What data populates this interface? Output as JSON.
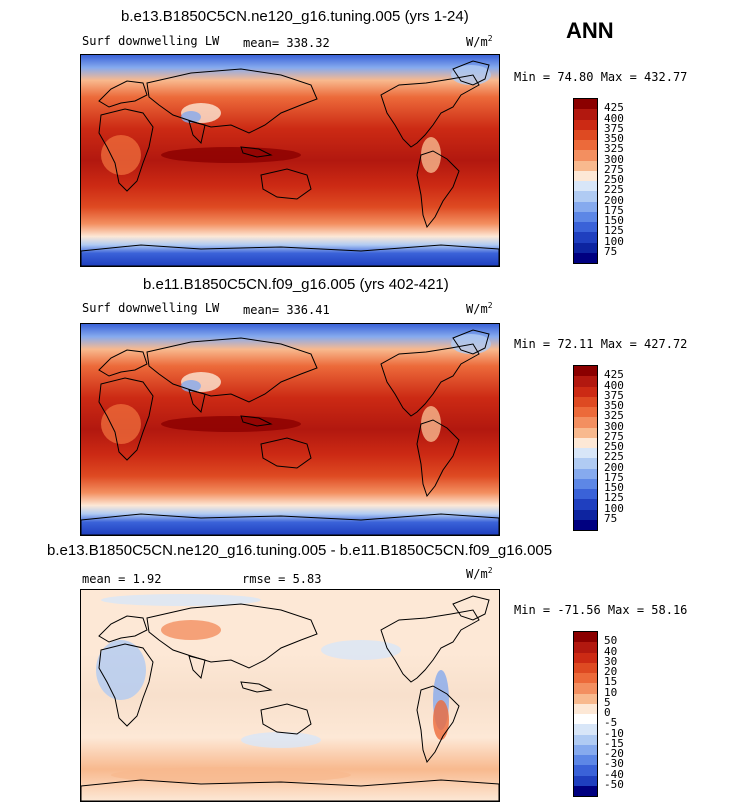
{
  "season": "ANN",
  "panels": [
    {
      "title": "b.e13.B1850C5CN.ne120_g16.tuning.005 (yrs 1-24)",
      "left_label": "Surf downwelling LW",
      "stat1": "mean= 338.32",
      "stat2": "",
      "units": "W/m",
      "units_sup": "2",
      "minmax": "Min =  74.80 Max = 432.77",
      "colorbar": {
        "ticks": [
          "425",
          "400",
          "375",
          "350",
          "325",
          "300",
          "275",
          "250",
          "225",
          "200",
          "175",
          "150",
          "125",
          "100",
          "75"
        ],
        "colors": [
          "#8b0000",
          "#b2180f",
          "#cc2a14",
          "#de4a22",
          "#ec6a3a",
          "#f38f60",
          "#f8b98e",
          "#fde8d6",
          "#d8e6f8",
          "#b0cbf3",
          "#86aaee",
          "#5d87e6",
          "#3a62d8",
          "#1f3fbf",
          "#0d24a0",
          "#000080"
        ]
      },
      "map_style": "absolute"
    },
    {
      "title": "b.e11.B1850C5CN.f09_g16.005 (yrs 402-421)",
      "left_label": "Surf downwelling LW",
      "stat1": "mean= 336.41",
      "stat2": "",
      "units": "W/m",
      "units_sup": "2",
      "minmax": "Min =  72.11 Max = 427.72",
      "colorbar": {
        "ticks": [
          "425",
          "400",
          "375",
          "350",
          "325",
          "300",
          "275",
          "250",
          "225",
          "200",
          "175",
          "150",
          "125",
          "100",
          "75"
        ],
        "colors": [
          "#8b0000",
          "#b2180f",
          "#cc2a14",
          "#de4a22",
          "#ec6a3a",
          "#f38f60",
          "#f8b98e",
          "#fde8d6",
          "#d8e6f8",
          "#b0cbf3",
          "#86aaee",
          "#5d87e6",
          "#3a62d8",
          "#1f3fbf",
          "#0d24a0",
          "#000080"
        ]
      },
      "map_style": "absolute"
    },
    {
      "title": "b.e13.B1850C5CN.ne120_g16.tuning.005 - b.e11.B1850C5CN.f09_g16.005",
      "left_label": "",
      "stat1": "mean =   1.92",
      "stat2": "rmse =   5.83",
      "units": "W/m",
      "units_sup": "2",
      "minmax": "Min = -71.56 Max =  58.16",
      "colorbar": {
        "ticks": [
          "50",
          "40",
          "30",
          "20",
          "15",
          "10",
          "5",
          "0",
          "-5",
          "-10",
          "-15",
          "-20",
          "-30",
          "-40",
          "-50"
        ],
        "colors": [
          "#8b0000",
          "#b2180f",
          "#cc2a14",
          "#de4a22",
          "#ec6a3a",
          "#f38f60",
          "#f8b98e",
          "#fde8d6",
          "#ffffff",
          "#d8e6f8",
          "#b0cbf3",
          "#86aaee",
          "#5d87e6",
          "#3a62d8",
          "#1f3fbf",
          "#000080"
        ]
      },
      "map_style": "difference"
    }
  ]
}
